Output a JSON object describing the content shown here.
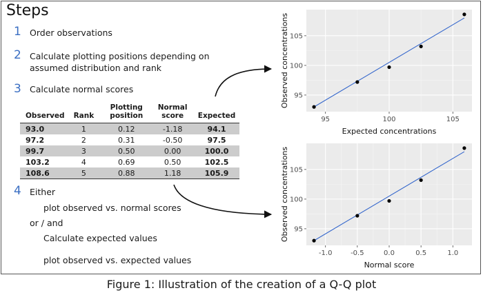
{
  "title": "Steps",
  "steps": [
    {
      "num": "1",
      "text": "Order observations"
    },
    {
      "num": "2",
      "text": "Calculate plotting positions depending on",
      "text2": "assumed distribution and rank"
    },
    {
      "num": "3",
      "text": "Calculate normal scores"
    },
    {
      "num": "4",
      "text": "Either"
    }
  ],
  "step4": {
    "opt1": "plot observed vs. normal scores",
    "or": "or  / and",
    "opt2": "Calculate expected values",
    "opt3": "plot observed vs. expected values"
  },
  "table": {
    "headers": [
      "Observed",
      "Rank",
      "Plotting position",
      "Normal score",
      "Expected"
    ],
    "rows": [
      [
        "93.0",
        "1",
        "0.12",
        "-1.18",
        "94.1"
      ],
      [
        "97.2",
        "2",
        "0.31",
        "-0.50",
        "97.5"
      ],
      [
        "99.7",
        "3",
        "0.50",
        "0.00",
        "100.0"
      ],
      [
        "103.2",
        "4",
        "0.69",
        "0.50",
        "102.5"
      ],
      [
        "108.6",
        "5",
        "0.88",
        "1.18",
        "105.9"
      ]
    ]
  },
  "colors": {
    "number": "#3a6ec2",
    "line": "#3366cc",
    "panel": "#ebebeb",
    "shade": "#cccccc"
  },
  "chart_data": [
    {
      "type": "scatter",
      "xlabel": "Expected concentrations",
      "ylabel": "Observed concentrations",
      "x": [
        94.1,
        97.5,
        100.0,
        102.5,
        105.9
      ],
      "y": [
        93.0,
        97.2,
        99.7,
        103.2,
        108.6
      ],
      "xticks": [
        "95",
        "100",
        "105"
      ],
      "yticks": [
        "95",
        "100",
        "105"
      ],
      "xlim": [
        93.5,
        106.5
      ],
      "ylim": [
        92.2,
        109.4
      ],
      "fit_line": {
        "x": [
          94.1,
          105.9
        ],
        "y": [
          93.0,
          108.0
        ]
      },
      "grid": true
    },
    {
      "type": "scatter",
      "xlabel": "Normal score",
      "ylabel": "Observed concentrations",
      "x": [
        -1.18,
        -0.5,
        0.0,
        0.5,
        1.18
      ],
      "y": [
        93.0,
        97.2,
        99.7,
        103.2,
        108.6
      ],
      "xticks": [
        "-1.0",
        "-0.5",
        "0.0",
        "0.5",
        "1.0"
      ],
      "yticks": [
        "95",
        "100",
        "105"
      ],
      "xlim": [
        -1.3,
        1.3
      ],
      "ylim": [
        92.2,
        109.4
      ],
      "fit_line": {
        "x": [
          -1.18,
          1.18
        ],
        "y": [
          93.0,
          108.0
        ]
      },
      "grid": true
    }
  ],
  "caption": "Figure 1: Illustration of the creation of a Q-Q plot"
}
